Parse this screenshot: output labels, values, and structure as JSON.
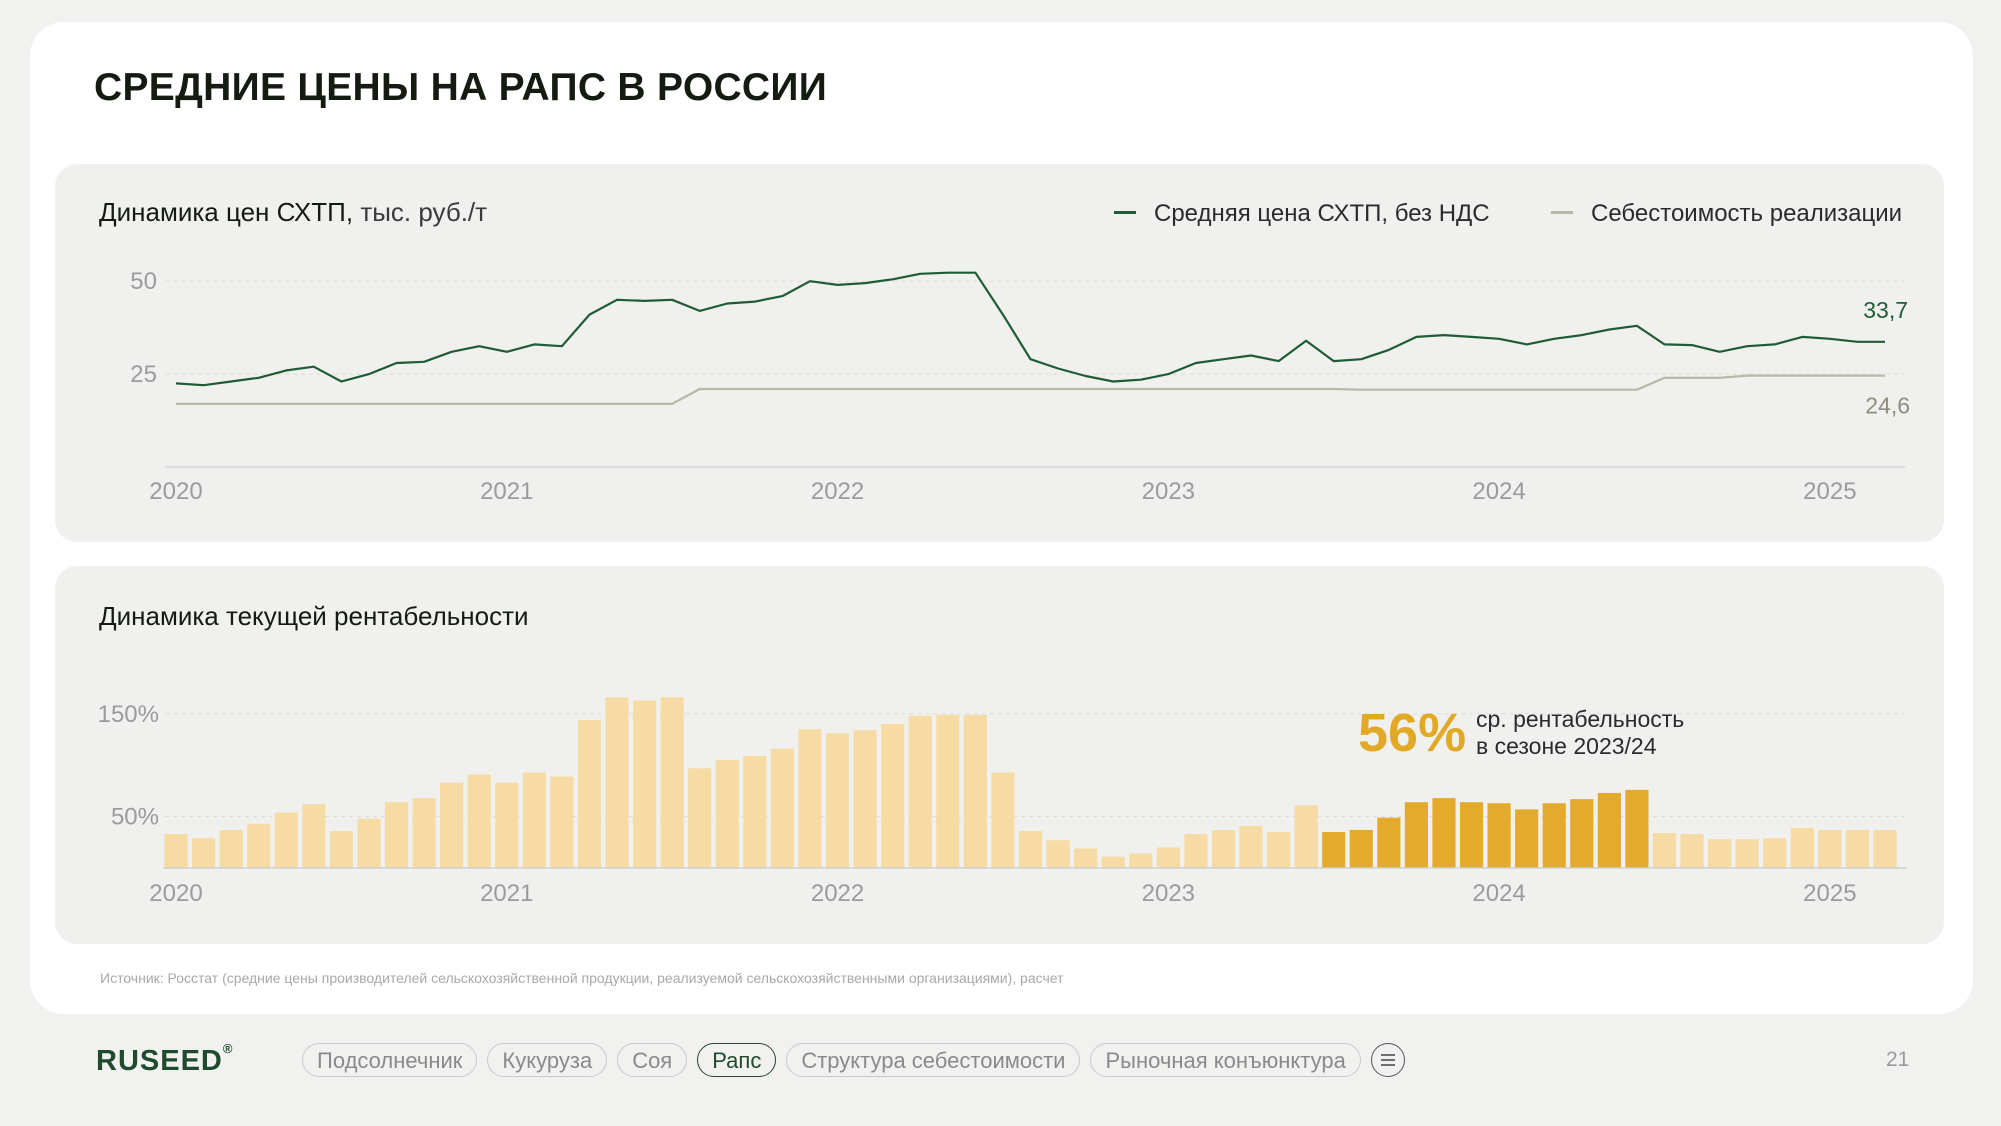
{
  "title": "СРЕДНИЕ ЦЕНЫ НА РАПС В РОССИИ",
  "colors": {
    "price": "#1f5c34",
    "cost": "#b9b7a6",
    "bar_light": "#f6dba5",
    "bar_highlight": "#e4aa2c",
    "grid": "#dcdcdc"
  },
  "chart_data": [
    {
      "type": "line",
      "title": "Динамика цен СХТП,",
      "unit": "тыс. руб./т",
      "x": [
        "2020-01",
        "2020-02",
        "2020-03",
        "2020-04",
        "2020-05",
        "2020-06",
        "2020-07",
        "2020-08",
        "2020-09",
        "2020-10",
        "2020-11",
        "2020-12",
        "2021-01",
        "2021-02",
        "2021-03",
        "2021-04",
        "2021-05",
        "2021-06",
        "2021-07",
        "2021-08",
        "2021-09",
        "2021-10",
        "2021-11",
        "2021-12",
        "2022-01",
        "2022-02",
        "2022-03",
        "2022-04",
        "2022-05",
        "2022-06",
        "2022-07",
        "2022-08",
        "2022-09",
        "2022-10",
        "2022-11",
        "2022-12",
        "2023-01",
        "2023-02",
        "2023-03",
        "2023-04",
        "2023-05",
        "2023-06",
        "2023-07",
        "2023-08",
        "2023-09",
        "2023-10",
        "2023-11",
        "2023-12",
        "2024-01",
        "2024-02",
        "2024-03",
        "2024-04",
        "2024-05",
        "2024-06",
        "2024-07",
        "2024-08",
        "2024-09",
        "2024-10",
        "2024-11",
        "2024-12",
        "2025-01",
        "2025-02",
        "2025-03"
      ],
      "xticks": [
        "2020",
        "2021",
        "2022",
        "2023",
        "2024",
        "2025"
      ],
      "yticks": [
        25,
        50
      ],
      "ylim": [
        0,
        52
      ],
      "grid": true,
      "legend_position": "top-right",
      "series": [
        {
          "name": "Средняя цена СХТП, без НДС",
          "values": [
            22.5,
            22,
            23,
            24,
            26,
            27,
            23,
            25,
            28,
            28.3,
            31,
            32.5,
            31,
            33,
            32.5,
            41,
            45,
            44.7,
            45,
            42,
            44,
            44.5,
            46,
            50,
            49,
            49.5,
            50.5,
            52,
            52.3,
            52.3,
            41,
            29,
            26.5,
            24.5,
            23,
            23.5,
            25,
            28,
            29,
            30,
            28.5,
            34,
            28.5,
            29,
            31.5,
            35,
            35.5,
            35,
            34.5,
            33,
            34.5,
            35.5,
            37,
            38,
            33,
            32.8,
            31,
            32.5,
            33,
            35,
            34.5,
            33.7,
            33.7
          ],
          "end_label": "33,7"
        },
        {
          "name": "Себестоимость реализации",
          "values": [
            17,
            17,
            17,
            17,
            17,
            17,
            17,
            17,
            17,
            17,
            17,
            17,
            17,
            17,
            17,
            17,
            17,
            17,
            17,
            21,
            21,
            21,
            21,
            21,
            21,
            21,
            21,
            21,
            21,
            21,
            21,
            21,
            21,
            21,
            21,
            21,
            21,
            21,
            21,
            21,
            21,
            21,
            21,
            20.8,
            20.8,
            20.8,
            20.8,
            20.8,
            20.8,
            20.8,
            20.8,
            20.8,
            20.8,
            20.8,
            24,
            24,
            24,
            24.6,
            24.6,
            24.6,
            24.6,
            24.6,
            24.6
          ],
          "end_label": "24,6"
        }
      ]
    },
    {
      "type": "bar",
      "title": "Динамика текущей рентабельности",
      "xticks": [
        "2020",
        "2021",
        "2022",
        "2023",
        "2024",
        "2025"
      ],
      "yticks": [
        {
          "value": 50,
          "label": "50%"
        },
        {
          "value": 150,
          "label": "150%"
        }
      ],
      "ylim": [
        0,
        160
      ],
      "grid": true,
      "values": [
        33,
        29,
        37,
        43,
        54,
        62,
        36,
        48,
        64,
        68,
        83,
        91,
        83,
        93,
        89,
        144,
        166,
        163,
        166,
        97,
        105,
        109,
        116,
        135,
        131,
        134,
        140,
        148,
        149,
        149,
        93,
        36,
        27,
        19,
        11,
        14,
        20,
        33,
        37,
        41,
        35,
        61,
        35,
        37,
        49,
        64,
        68,
        64,
        63,
        57,
        63,
        67,
        73,
        76,
        34,
        33,
        28,
        28,
        29,
        39,
        37,
        37,
        37
      ],
      "highlight_range": [
        42,
        53
      ],
      "annotation": {
        "value": "56%",
        "text_line1": "ср. рентабельность",
        "text_line2": "в сезоне 2023/24"
      }
    }
  ],
  "source": "Источник: Росстат (средние цены производителей сельскохозяйственной продукции, реализуемой сельскохозяйственными организациями), расчет",
  "footer": {
    "logo": "RUSEED",
    "logo_mark": "®",
    "nav": [
      "Подсолнечник",
      "Кукуруза",
      "Соя",
      "Рапс",
      "Структура себестоимости",
      "Рыночная конъюнктура"
    ],
    "active": "Рапс",
    "page": "21"
  }
}
